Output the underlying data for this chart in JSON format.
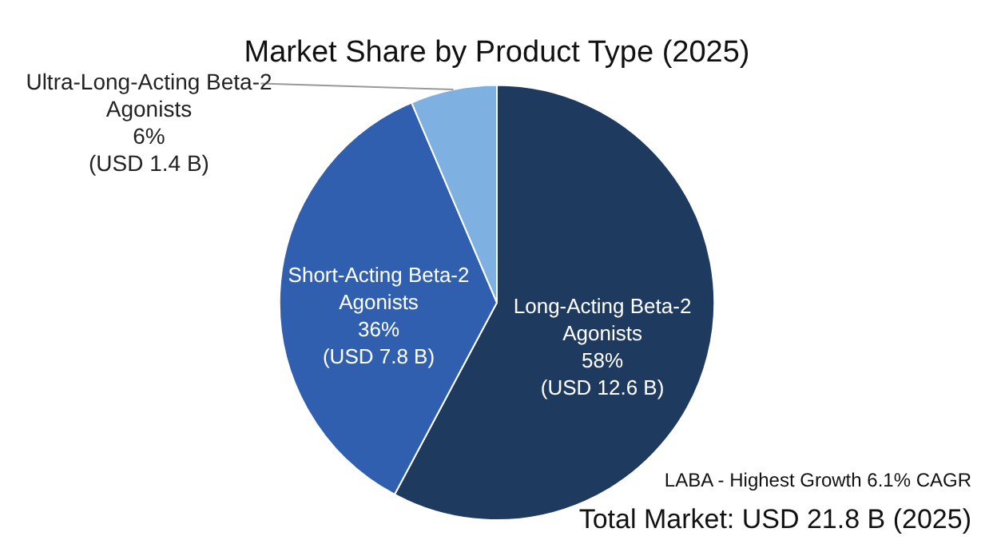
{
  "chart_data": {
    "type": "pie",
    "title": "Market Share by Product Type (2025)",
    "categories": [
      "Long-Acting Beta-2 Agonists",
      "Short-Acting Beta-2 Agonists",
      "Ultra-Long-Acting Beta-2 Agonists"
    ],
    "values": [
      12.6,
      7.8,
      1.4
    ],
    "colors": [
      "#1f3a5f",
      "#2f5fae",
      "#7eb1e2"
    ],
    "value_labels": [
      "58%\n(USD 12.6 B)",
      "36%\n(USD 7.8 B)",
      "6%\n(USD 1.4 B)"
    ],
    "annotations": [
      "LABA - Highest Growth 6.1% CAGR",
      "Total Market: USD 21.8 B (2025)"
    ],
    "legend": false
  }
}
